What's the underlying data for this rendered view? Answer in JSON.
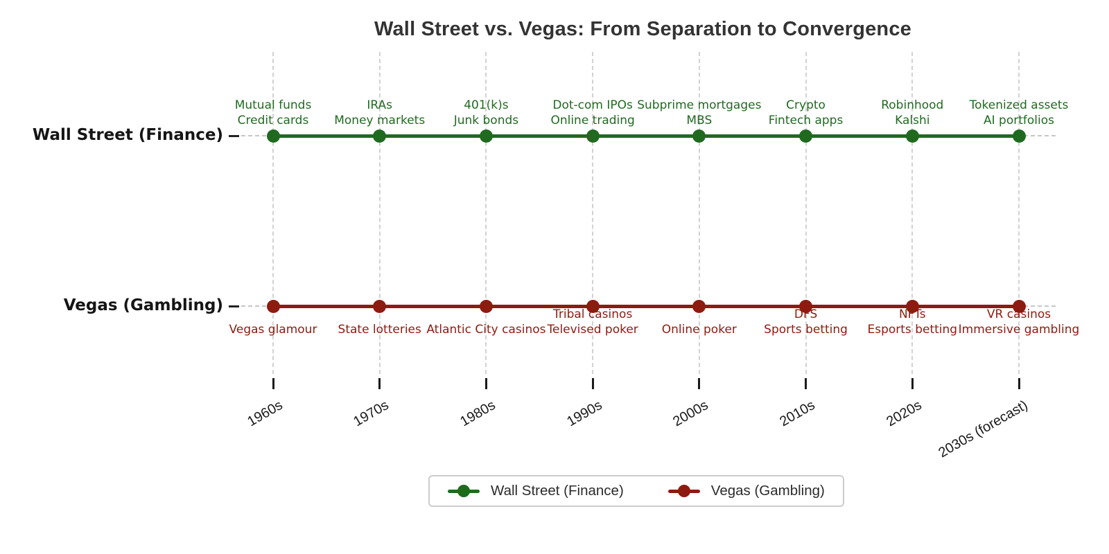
{
  "chart_data": {
    "type": "line",
    "title": "Wall Street vs. Vegas: From Separation to Convergence",
    "x": [
      "1960s",
      "1970s",
      "1980s",
      "1990s",
      "2000s",
      "2010s",
      "2020s",
      "2030s (forecast)"
    ],
    "grid": "vertical-dashed",
    "legend_position": "bottom-center",
    "series": [
      {
        "name": "Wall Street (Finance)",
        "color": "#206a20",
        "annotation_side": "above",
        "annotations": [
          [
            "Mutual funds",
            "Credit cards"
          ],
          [
            "IRAs",
            "Money markets"
          ],
          [
            "401(k)s",
            "Junk bonds"
          ],
          [
            "Dot-com IPOs",
            "Online trading"
          ],
          [
            "Subprime mortgages",
            "MBS"
          ],
          [
            "Crypto",
            "Fintech apps"
          ],
          [
            "Robinhood",
            "Kalshi"
          ],
          [
            "Tokenized assets",
            "AI portfolios"
          ]
        ]
      },
      {
        "name": "Vegas (Gambling)",
        "color": "#8e1b10",
        "annotation_side": "below",
        "annotations": [
          [
            "",
            "Vegas glamour"
          ],
          [
            "",
            "State lotteries"
          ],
          [
            "",
            "Atlantic City casinos"
          ],
          [
            "Tribal casinos",
            "Televised poker"
          ],
          [
            "",
            "Online poker"
          ],
          [
            "DFS",
            "Sports betting"
          ],
          [
            "NFTs",
            "Esports betting"
          ],
          [
            "VR casinos",
            "Immersive gambling"
          ]
        ]
      }
    ],
    "colors": {
      "title": "#333333",
      "tick_label": "#1a1a1a",
      "gridline": "#d2d2d2",
      "baseline_dash": "#c6c6c6",
      "finance": "#206a20",
      "gambling": "#8e1b10"
    }
  }
}
